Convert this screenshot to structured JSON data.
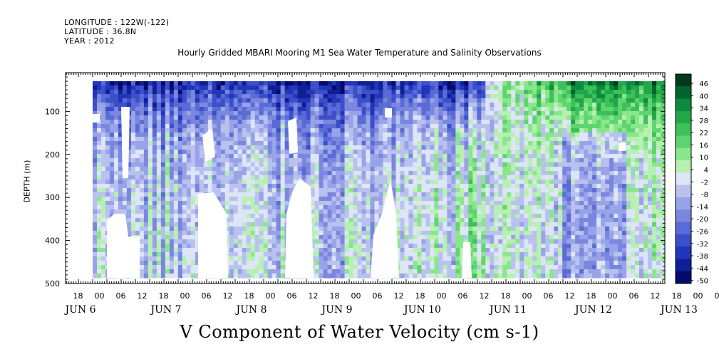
{
  "header": {
    "longitude": "LONGITUDE : 122W(-122)",
    "latitude": "LATITUDE : 36.8N",
    "year": "YEAR : 2012"
  },
  "chart_data": {
    "type": "heatmap",
    "title": "Hourly Gridded MBARI Mooring M1 Sea Water Temperature and Salinity Observations",
    "main_title": "V Component of Water Velocity (cm s-1)",
    "ylabel": "DEPTH (m)",
    "xlabel": "",
    "yticks": [
      "100",
      "200",
      "300",
      "400",
      "500"
    ],
    "ylim": [
      10,
      500
    ],
    "y_reversed": true,
    "x_hour_labels": [
      "18",
      "00",
      "06",
      "12",
      "18",
      "00",
      "06",
      "12",
      "18",
      "00",
      "06",
      "12",
      "18",
      "00",
      "06",
      "12",
      "18",
      "00",
      "06",
      "12",
      "18",
      "00",
      "06",
      "12",
      "18",
      "00",
      "06",
      "12",
      "18",
      "00",
      "06",
      "12"
    ],
    "x_day_labels": [
      "JUN  6",
      "JUN  7",
      "JUN  8",
      "JUN  9",
      "JUN 10",
      "JUN 11",
      "JUN 12",
      "JUN 13"
    ],
    "colorbar": {
      "labels": [
        "46",
        "40",
        "34",
        "28",
        "22",
        "16",
        "10",
        "4",
        "-2",
        "-8",
        "-14",
        "-20",
        "-26",
        "-32",
        "-38",
        "-44",
        "-50"
      ],
      "range": [
        -50,
        49
      ],
      "colors": [
        "#003b1c",
        "#00662e",
        "#0d8a3e",
        "#22a64a",
        "#3cc05a",
        "#5fd56f",
        "#8ae68c",
        "#b8f0b3",
        "#dde5f7",
        "#b9c2ef",
        "#98a3e8",
        "#7a87df",
        "#5b6bd6",
        "#3c4fcb",
        "#2136b8",
        "#101f95",
        "#060a6b"
      ]
    },
    "description_regimes": [
      {
        "period": "JUN 6 06 - JUN 10 18",
        "near_surface": "negative (-30 to -45)",
        "deep": "-15 to +15"
      },
      {
        "period": "JUN 11 - JUN 13",
        "near_surface": "positive (+15 to +40)",
        "deep": "-25 to +10"
      }
    ]
  }
}
